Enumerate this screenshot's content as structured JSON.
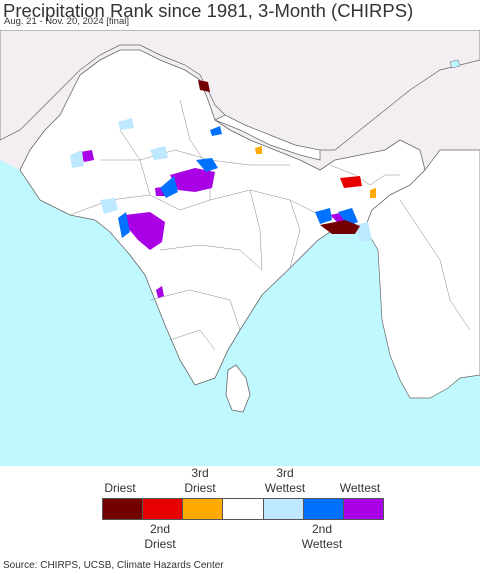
{
  "header": {
    "title": "Precipitation Rank since 1981, 3-Month (CHIRPS)",
    "subtitle": "Aug. 21 - Nov. 20, 2024 [final]"
  },
  "map": {
    "ocean_color": "#bff8ff",
    "land_color": "#ffffff",
    "outside_region_color": "#f2eef2"
  },
  "legend": {
    "top_labels": [
      "Driest",
      "3rd\nDriest",
      "3rd\nWettest",
      "Wettest"
    ],
    "bottom_labels": [
      "2nd\nDriest",
      "2nd\nWettest"
    ],
    "colors": [
      "#730000",
      "#e60000",
      "#ffaa00",
      "#ffffff",
      "#bee8ff",
      "#0070ff",
      "#a900e6"
    ]
  },
  "footer": {
    "source": "Source: CHIRPS, UCSB, Climate Hazards Center"
  }
}
